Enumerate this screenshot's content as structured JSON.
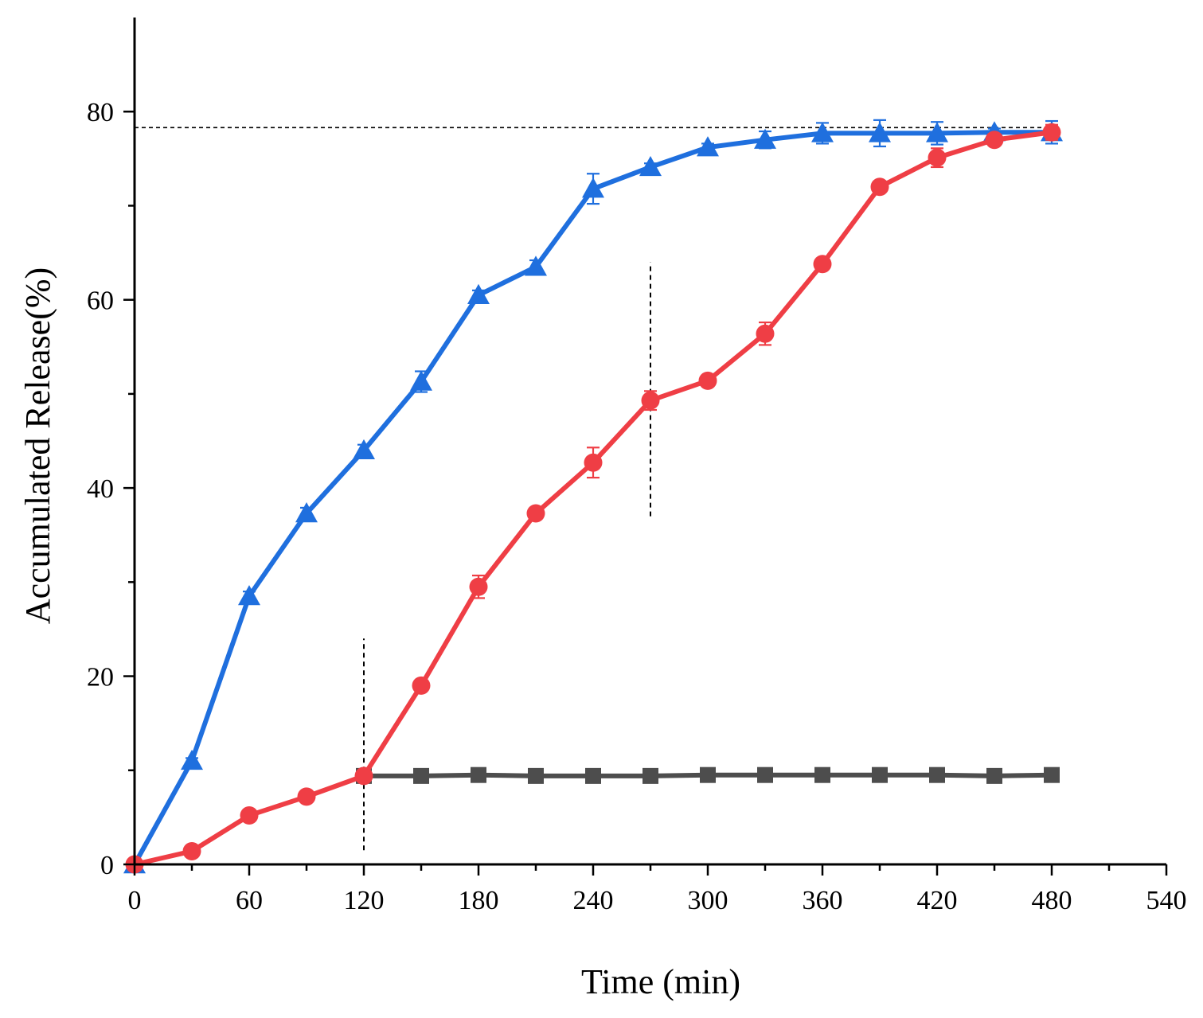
{
  "chart_data": {
    "type": "line",
    "title": "",
    "xlabel": "Time (min)",
    "ylabel": "Accumulated Release(%)",
    "xlim": [
      0,
      540
    ],
    "ylim": [
      0,
      90
    ],
    "xticks": [
      0,
      60,
      120,
      180,
      240,
      300,
      360,
      420,
      480,
      540
    ],
    "yticks": [
      0,
      20,
      40,
      60,
      80
    ],
    "grid": false,
    "series": [
      {
        "name": "blue-triangles",
        "color": "#1f6fde",
        "marker": "triangle",
        "x": [
          0,
          30,
          60,
          90,
          120,
          150,
          180,
          210,
          240,
          270,
          300,
          330,
          360,
          390,
          420,
          450,
          480
        ],
        "y": [
          0,
          11,
          28.5,
          37.3,
          44,
          51.3,
          60.5,
          63.5,
          71.8,
          74.1,
          76.2,
          77,
          77.7,
          77.7,
          77.7,
          77.8,
          77.8
        ],
        "err": [
          0,
          0.3,
          0.5,
          0.6,
          0.6,
          1.1,
          0.5,
          0.7,
          1.6,
          0.4,
          0.4,
          0.9,
          1.1,
          1.4,
          1.2,
          0.4,
          1.2
        ]
      },
      {
        "name": "red-circles",
        "color": "#ef3e45",
        "marker": "circle",
        "x": [
          0,
          30,
          60,
          90,
          120,
          150,
          180,
          210,
          240,
          270,
          300,
          330,
          360,
          390,
          420,
          450,
          480
        ],
        "y": [
          0,
          1.4,
          5.2,
          7.2,
          9.4,
          19,
          29.5,
          37.3,
          42.7,
          49.3,
          51.4,
          56.4,
          63.8,
          72,
          75.1,
          77,
          77.8
        ],
        "err": [
          0,
          0.3,
          0.4,
          0.3,
          0.4,
          0.4,
          1.2,
          0.5,
          1.6,
          1.0,
          0.3,
          1.2,
          0.5,
          0.4,
          1.0,
          0.4,
          0.8
        ]
      },
      {
        "name": "gray-squares",
        "color": "#4d4d4d",
        "marker": "square",
        "x": [
          120,
          150,
          180,
          210,
          240,
          270,
          300,
          330,
          360,
          390,
          420,
          450,
          480
        ],
        "y": [
          9.4,
          9.4,
          9.5,
          9.4,
          9.4,
          9.4,
          9.5,
          9.5,
          9.5,
          9.5,
          9.5,
          9.4,
          9.5
        ],
        "err": [
          0,
          0,
          0,
          0,
          0,
          0,
          0,
          0,
          0,
          0,
          0,
          0,
          0
        ]
      }
    ],
    "reference_lines": [
      {
        "orientation": "horizontal",
        "y": 78.3,
        "x_from": 0,
        "x_to": 480
      },
      {
        "orientation": "vertical",
        "x": 120,
        "y_from": 1.5,
        "y_to": 24
      },
      {
        "orientation": "vertical",
        "x": 270,
        "y_from": 37,
        "y_to": 64
      }
    ]
  }
}
